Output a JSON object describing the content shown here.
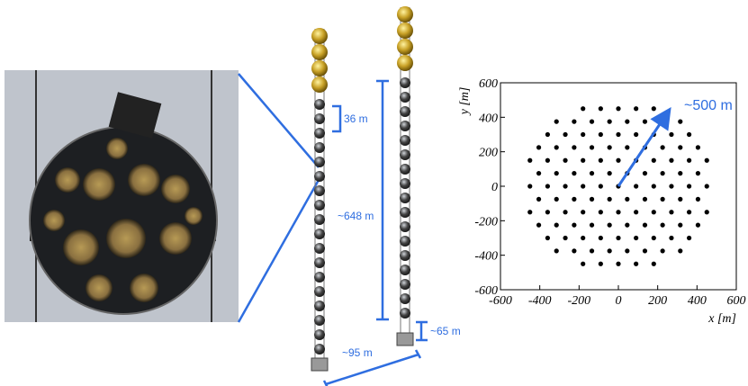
{
  "annotations": {
    "module_spacing": "36 m",
    "string_length": "~648 m",
    "bottom_height": "~65 m",
    "string_distance": "~95 m"
  },
  "chart_data": {
    "type": "scatter",
    "annotation": "~500 m",
    "xlabel": "x  [m]",
    "ylabel": "y  [m]",
    "color": "#000000",
    "xlim": [
      -600,
      600
    ],
    "ylim": [
      -600,
      600
    ],
    "xticks": [
      -600,
      -400,
      -200,
      0,
      200,
      400,
      600
    ],
    "yticks": [
      -600,
      -400,
      -200,
      0,
      200,
      400,
      600
    ],
    "x": [
      -180,
      -90,
      0,
      90,
      180,
      -315,
      -225,
      -135,
      -45,
      45,
      135,
      225,
      315,
      -360,
      -270,
      -180,
      -90,
      0,
      90,
      180,
      270,
      360,
      -405,
      -315,
      -225,
      -135,
      -45,
      45,
      135,
      225,
      315,
      405,
      -450,
      -360,
      -270,
      -180,
      -90,
      0,
      90,
      180,
      270,
      360,
      450,
      -405,
      -315,
      -225,
      -135,
      -45,
      45,
      135,
      225,
      315,
      405,
      -450,
      -360,
      -270,
      -180,
      -90,
      0,
      90,
      180,
      270,
      360,
      450,
      -405,
      -315,
      -225,
      -135,
      -45,
      45,
      135,
      225,
      315,
      405,
      -450,
      -360,
      -270,
      -180,
      -90,
      0,
      90,
      180,
      270,
      360,
      450,
      -405,
      -315,
      -225,
      -135,
      -45,
      45,
      135,
      225,
      315,
      405,
      -360,
      -270,
      -180,
      -90,
      0,
      90,
      180,
      270,
      360,
      -315,
      -225,
      -135,
      -45,
      45,
      135,
      225,
      315,
      -180,
      -90,
      0,
      90,
      180
    ],
    "y": [
      450,
      450,
      450,
      450,
      450,
      375,
      375,
      375,
      375,
      375,
      375,
      375,
      375,
      300,
      300,
      300,
      300,
      300,
      300,
      300,
      300,
      300,
      225,
      225,
      225,
      225,
      225,
      225,
      225,
      225,
      225,
      225,
      150,
      150,
      150,
      150,
      150,
      150,
      150,
      150,
      150,
      150,
      150,
      75,
      75,
      75,
      75,
      75,
      75,
      75,
      75,
      75,
      75,
      0,
      0,
      0,
      0,
      0,
      0,
      0,
      0,
      0,
      0,
      0,
      -75,
      -75,
      -75,
      -75,
      -75,
      -75,
      -75,
      -75,
      -75,
      -75,
      -150,
      -150,
      -150,
      -150,
      -150,
      -150,
      -150,
      -150,
      -150,
      -150,
      -150,
      -225,
      -225,
      -225,
      -225,
      -225,
      -225,
      -225,
      -225,
      -225,
      -225,
      -300,
      -300,
      -300,
      -300,
      -300,
      -300,
      -300,
      -300,
      -300,
      -375,
      -375,
      -375,
      -375,
      -375,
      -375,
      -375,
      -375,
      -450,
      -450,
      -450,
      -450,
      -450
    ]
  }
}
